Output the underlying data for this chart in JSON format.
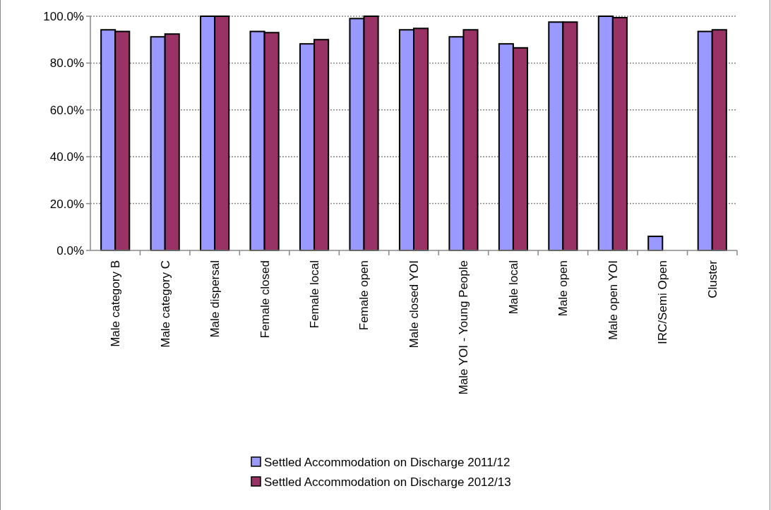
{
  "chart_data": {
    "type": "bar",
    "categories": [
      "Male category B",
      "Male category C",
      "Male dispersal",
      "Female closed",
      "Female local",
      "Female open",
      "Male closed YOI",
      "Male YOI - Young People",
      "Male local",
      "Male open",
      "Male open YOI",
      "IRC/Semi Open",
      "Cluster"
    ],
    "series": [
      {
        "name": "Settled Accommodation  on Discharge 2011/12",
        "color": "#9999ff",
        "values": [
          94.2,
          91.2,
          100,
          93.5,
          88.2,
          99,
          94.2,
          91.2,
          88.2,
          97.5,
          100,
          6,
          93.5
        ]
      },
      {
        "name": "Settled Accommodation  on Discharge 2012/13",
        "color": "#993366",
        "values": [
          93.5,
          92.4,
          100,
          93,
          90,
          100,
          94.8,
          94.2,
          86.5,
          97.5,
          99.4,
          null,
          94.2
        ]
      }
    ],
    "ylim": [
      0,
      100
    ],
    "yticks": [
      {
        "value": 0,
        "label": "0.0%"
      },
      {
        "value": 20,
        "label": "20.0%"
      },
      {
        "value": 40,
        "label": "40.0%"
      },
      {
        "value": 60,
        "label": "60.0%"
      },
      {
        "value": 80,
        "label": "80.0%"
      },
      {
        "value": 100,
        "label": "100.0%"
      }
    ],
    "grid": "y",
    "legend": "bottom"
  }
}
